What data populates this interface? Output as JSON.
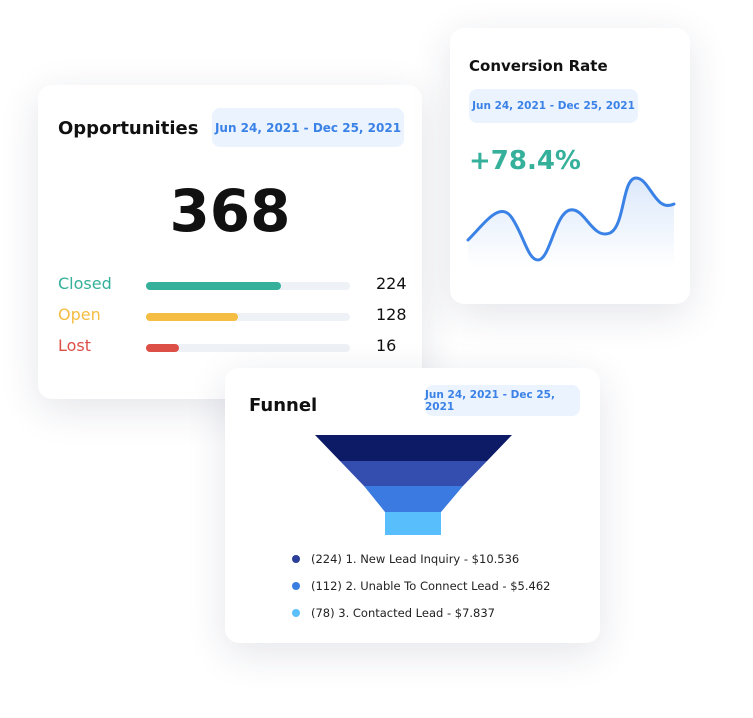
{
  "opportunities": {
    "title": "Opportunities",
    "date_range": "Jun 24, 2021 -  Dec 25, 2021",
    "total": "368",
    "rows": [
      {
        "label": "Closed",
        "value": "224",
        "percent": 66,
        "color": "#35b09a"
      },
      {
        "label": "Open",
        "value": "128",
        "percent": 45,
        "color": "#f5bd42"
      },
      {
        "label": "Lost",
        "value": "16",
        "percent": 16,
        "color": "#dc4f47"
      }
    ]
  },
  "conversion": {
    "title": "Conversion Rate",
    "date_range": "Jun 24, 2021 -  Dec 25, 2021",
    "value": "+78.4%",
    "accent": "#35b09a",
    "line_color": "#3b82e6"
  },
  "funnel": {
    "title": "Funnel",
    "date_range": "Jun 24, 2021 -  Dec 25, 2021",
    "stages": [
      {
        "label": "(224) 1. New Lead Inquiry - $10.536",
        "color": "#2a3e9a"
      },
      {
        "label": "(112) 2. Unable To Connect Lead - $5.462",
        "color": "#3a7de0"
      },
      {
        "label": "(78) 3. Contacted Lead - $7.837",
        "color": "#5bc0fa"
      }
    ],
    "layer_colors": [
      "#0d1a66",
      "#344eb0",
      "#3b7ae0",
      "#59befc"
    ]
  }
}
